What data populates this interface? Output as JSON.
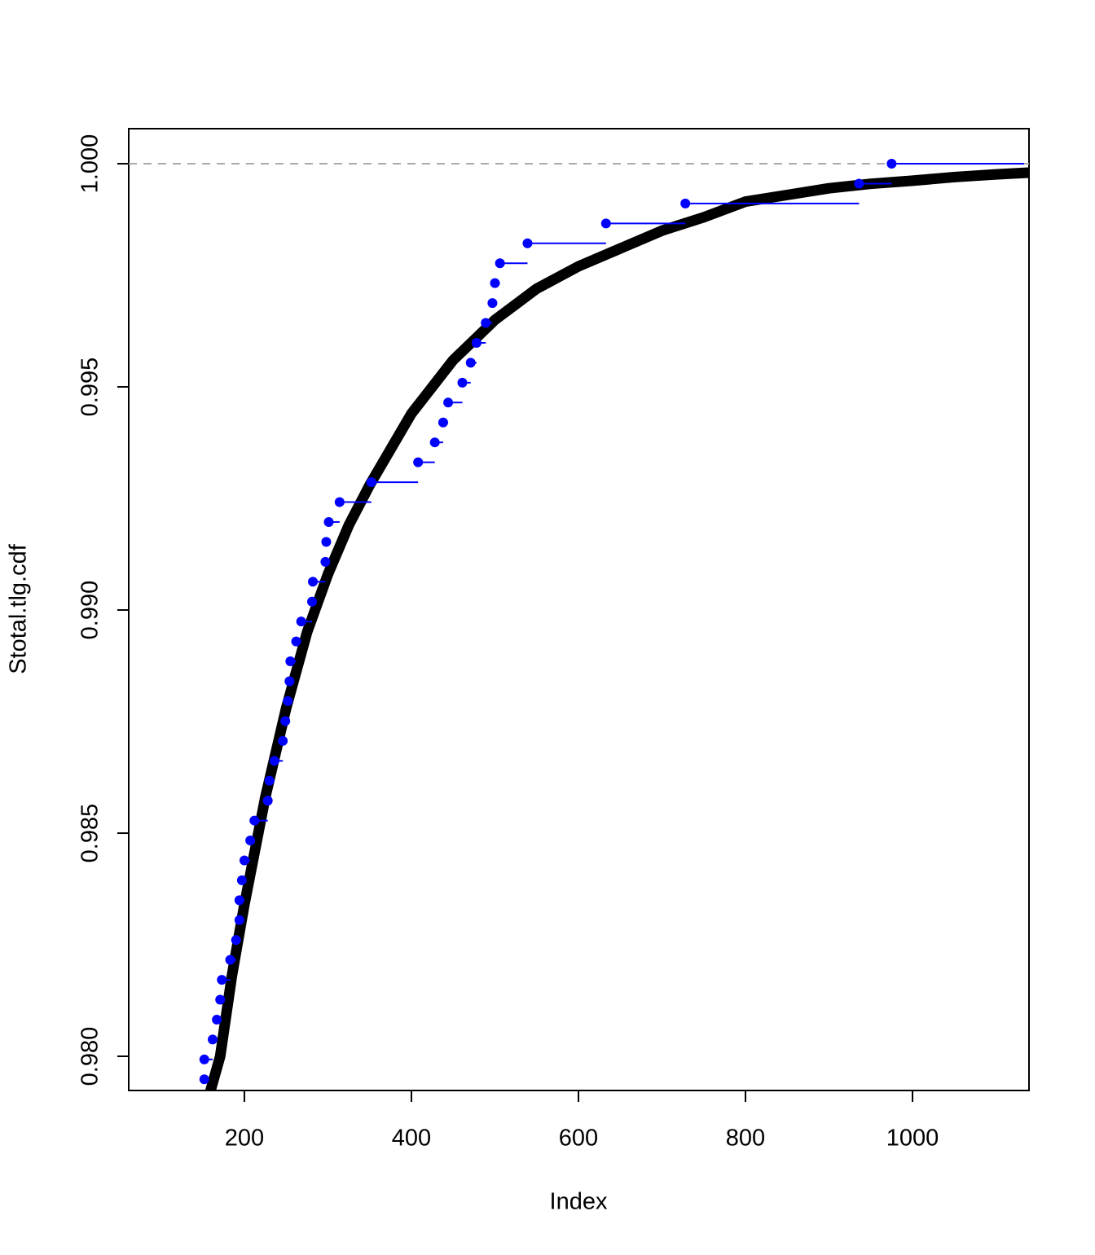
{
  "chart_data": {
    "type": "line",
    "xlabel": "Index",
    "ylabel": "Stotal.tlg.cdf",
    "xlim": [
      61.5,
      1139.5
    ],
    "ylim": [
      0.979234,
      1.000785
    ],
    "xticks": [
      200,
      400,
      600,
      800,
      1000
    ],
    "yticks": [
      {
        "value": 0.98,
        "label": "0.980"
      },
      {
        "value": 0.985,
        "label": "0.985"
      },
      {
        "value": 0.99,
        "label": "0.990"
      },
      {
        "value": 0.995,
        "label": "0.995"
      },
      {
        "value": 1,
        "label": "1.000"
      }
    ],
    "hline": 1,
    "series": [
      {
        "color": "#000000",
        "style": "curve",
        "x": [
          159,
          171,
          185,
          200,
          225,
          250,
          275,
          300,
          325,
          350,
          400,
          450,
          500,
          550,
          600,
          650,
          700,
          750,
          800,
          850,
          900,
          950,
          1000,
          1050,
          1100,
          1139
        ],
        "values": [
          0.9792,
          0.98,
          0.9818,
          0.9834,
          0.9858,
          0.9878,
          0.9895,
          0.9908,
          0.9919,
          0.9928,
          0.9944,
          0.9956,
          0.9965,
          0.9972,
          0.9977,
          0.9981,
          0.9985,
          0.9988,
          0.99915,
          0.9993,
          0.99945,
          0.99955,
          0.99962,
          0.9997,
          0.99976,
          0.9998
        ]
      },
      {
        "color": "#0000ff",
        "style": "step",
        "x": [
          152,
          152,
          162,
          167,
          171,
          173,
          183,
          190,
          194,
          194,
          197,
          200,
          207,
          212,
          228,
          230,
          236,
          246,
          249,
          252,
          254,
          255,
          262,
          268,
          281,
          282,
          297,
          298,
          301,
          314,
          352,
          408,
          428,
          438,
          444,
          461,
          471,
          478,
          489,
          497,
          500,
          506,
          539,
          633,
          728,
          936,
          975
        ],
        "values": [
          0.979484,
          0.97993,
          0.980376,
          0.980822,
          0.981268,
          0.981714,
          0.98216,
          0.982606,
          0.983052,
          0.983498,
          0.983944,
          0.98439,
          0.984836,
          0.985282,
          0.985728,
          0.986174,
          0.98662,
          0.987066,
          0.987512,
          0.987958,
          0.988404,
          0.98885,
          0.989296,
          0.989742,
          0.990188,
          0.990634,
          0.99108,
          0.991526,
          0.991972,
          0.992418,
          0.992864,
          0.99331,
          0.993756,
          0.994202,
          0.994648,
          0.995094,
          0.99554,
          0.995986,
          0.996432,
          0.996878,
          0.997324,
          0.99777,
          0.998216,
          0.998662,
          0.999108,
          0.999554,
          1
        ]
      }
    ]
  }
}
